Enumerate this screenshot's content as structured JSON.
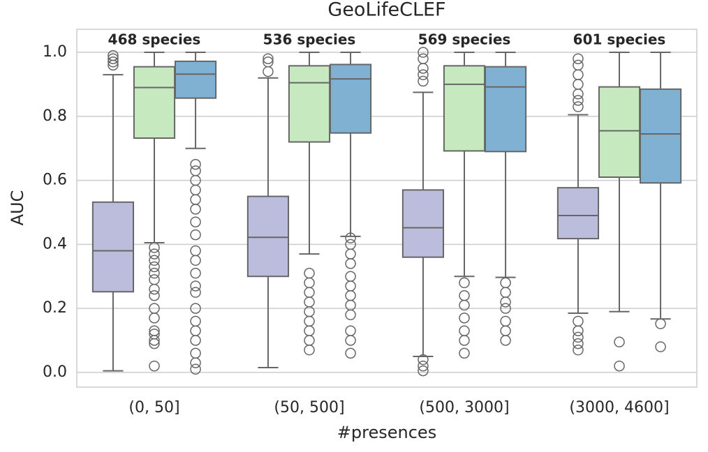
{
  "chart_data": {
    "type": "box",
    "title": "GeoLifeCLEF",
    "x_label": "#presences",
    "y_label": "AUC",
    "categories": [
      "(0, 50]",
      "(50, 500]",
      "(500, 3000]",
      "(3000, 4600]"
    ],
    "annotations": [
      "468 species",
      "536 species",
      "569 species",
      "601 species"
    ],
    "ylim": [
      -0.046,
      1.072
    ],
    "yticks": [
      {
        "value": 0,
        "label": "0.0"
      },
      0.2,
      0.4,
      0.6,
      0.8,
      {
        "value": 1,
        "label": "1.0"
      }
    ],
    "grid": true,
    "series": [
      {
        "color": "#bcbddc",
        "values": [
          {
            "whislo": 0.005,
            "q1": 0.252,
            "med": 0.38,
            "q3": 0.532,
            "whishi": 0.93,
            "fliers": [
              0.96,
              0.97,
              0.98,
              0.99
            ]
          },
          {
            "whislo": 0.015,
            "q1": 0.3,
            "med": 0.422,
            "q3": 0.55,
            "whishi": 0.92,
            "fliers": [
              0.94,
              0.97,
              0.98
            ]
          },
          {
            "whislo": 0.05,
            "q1": 0.36,
            "med": 0.452,
            "q3": 0.57,
            "whishi": 0.875,
            "fliers": [
              0.005,
              0.02,
              0.04,
              0.91,
              0.93,
              0.95,
              0.98,
              1.0
            ]
          },
          {
            "whislo": 0.185,
            "q1": 0.418,
            "med": 0.49,
            "q3": 0.577,
            "whishi": 0.805,
            "fliers": [
              0.07,
              0.09,
              0.11,
              0.13,
              0.16,
              0.83,
              0.85,
              0.87,
              0.9,
              0.93,
              0.96,
              0.98
            ]
          }
        ]
      },
      {
        "color": "#c7e9c0",
        "values": [
          {
            "whislo": 0.405,
            "q1": 0.732,
            "med": 0.89,
            "q3": 0.955,
            "whishi": 1.0,
            "fliers": [
              0.02,
              0.09,
              0.1,
              0.12,
              0.13,
              0.17,
              0.2,
              0.24,
              0.26,
              0.29,
              0.31,
              0.33,
              0.35,
              0.37,
              0.39
            ]
          },
          {
            "whislo": 0.37,
            "q1": 0.72,
            "med": 0.905,
            "q3": 0.958,
            "whishi": 1.0,
            "fliers": [
              0.07,
              0.1,
              0.13,
              0.16,
              0.19,
              0.22,
              0.25,
              0.28,
              0.31
            ]
          },
          {
            "whislo": 0.3,
            "q1": 0.692,
            "med": 0.9,
            "q3": 0.958,
            "whishi": 1.0,
            "fliers": [
              0.06,
              0.1,
              0.13,
              0.17,
              0.21,
              0.24,
              0.28
            ]
          },
          {
            "whislo": 0.19,
            "q1": 0.61,
            "med": 0.755,
            "q3": 0.892,
            "whishi": 1.0,
            "fliers": [
              0.02,
              0.095
            ]
          }
        ]
      },
      {
        "color": "#80b1d3",
        "values": [
          {
            "whislo": 0.7,
            "q1": 0.857,
            "med": 0.932,
            "q3": 0.972,
            "whishi": 1.0,
            "fliers": [
              0.01,
              0.03,
              0.06,
              0.1,
              0.13,
              0.16,
              0.2,
              0.25,
              0.27,
              0.31,
              0.35,
              0.38,
              0.43,
              0.47,
              0.51,
              0.54,
              0.57,
              0.6,
              0.63,
              0.65
            ]
          },
          {
            "whislo": 0.425,
            "q1": 0.748,
            "med": 0.917,
            "q3": 0.962,
            "whishi": 1.0,
            "fliers": [
              0.06,
              0.1,
              0.13,
              0.18,
              0.21,
              0.24,
              0.27,
              0.3,
              0.34,
              0.37,
              0.4,
              0.42
            ]
          },
          {
            "whislo": 0.297,
            "q1": 0.69,
            "med": 0.892,
            "q3": 0.955,
            "whishi": 1.0,
            "fliers": [
              0.1,
              0.13,
              0.16,
              0.2,
              0.22,
              0.25,
              0.28
            ]
          },
          {
            "whislo": 0.167,
            "q1": 0.592,
            "med": 0.745,
            "q3": 0.885,
            "whishi": 1.0,
            "fliers": [
              0.08,
              0.152
            ]
          }
        ]
      }
    ]
  }
}
